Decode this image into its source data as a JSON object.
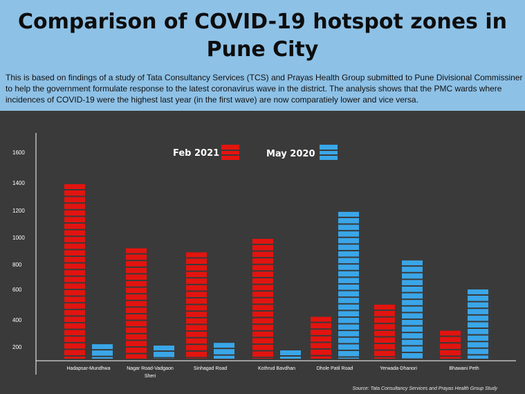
{
  "header": {
    "title": "Comparison of COVID-19 hotspot zones in Pune City",
    "description": "This is based on findings of a study of Tata Consultancy Services (TCS) and Prayas Health Group submitted to Pune Divisional Commissiner to help the government formulate response to the latest coronavirus wave in the district. The analysis shows that the PMC wards where incidences of COVID-19 were the highest last year (in the first wave) are now comparatiely lower and vice versa."
  },
  "colors": {
    "header_bg": "#8ec1e6",
    "chart_bg": "#3a3a3a",
    "feb_2021": "#e3140f",
    "may_2020": "#3aa6e8",
    "text_light": "#ffffff"
  },
  "chart_data": {
    "type": "bar",
    "categories": [
      "Hadapsar-Mundhwa",
      "Nagar Road-Vadgaon Sheri",
      "Sinhagad Road",
      "Kothrud Bavdhan",
      "Dhole Patil Road",
      "Yerwada-Dhanori",
      "Bhawani Peth"
    ],
    "series": [
      {
        "name": "Feb 2021",
        "values": [
          1390,
          920,
          890,
          990,
          420,
          500,
          320
        ]
      },
      {
        "name": "May 2020",
        "values": [
          220,
          210,
          230,
          150,
          1190,
          830,
          600
        ]
      }
    ],
    "y_ticks": [
      "1600",
      "1400",
      "1200",
      "1000",
      "800",
      "600",
      "400",
      "200"
    ],
    "legend_position": "top",
    "grid": false
  },
  "source": "Source: Tata Consultancy Services and Prayas Health Group Study"
}
